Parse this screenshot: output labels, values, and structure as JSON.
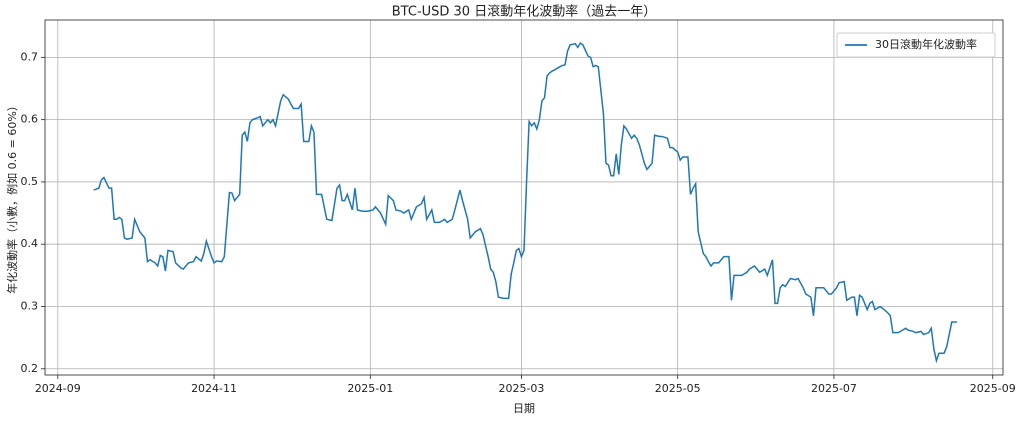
{
  "chart_data": {
    "type": "line",
    "title": "BTC-USD 30 日滾動年化波動率（過去一年）",
    "x_label": "日期",
    "y_label": "年化波動率（小數，例如 0.6 = 60%）",
    "x": [
      14,
      16,
      17,
      18,
      20,
      21,
      22,
      23,
      24,
      25,
      26,
      27,
      29,
      30,
      32,
      33,
      34,
      35,
      36,
      38,
      39,
      40,
      41,
      42,
      43,
      45,
      46,
      48,
      49,
      51,
      53,
      54,
      56,
      57,
      58,
      60,
      61,
      62,
      64,
      65,
      67,
      68,
      69,
      71,
      72,
      73,
      74,
      75,
      76,
      78,
      79,
      80,
      82,
      83,
      84,
      85,
      87,
      88,
      90,
      91,
      92,
      94,
      95,
      96,
      98,
      99,
      100,
      101,
      103,
      104,
      105,
      107,
      109,
      110,
      111,
      112,
      113,
      115,
      116,
      117,
      119,
      121,
      123,
      124,
      126,
      128,
      129,
      131,
      132,
      134,
      135,
      137,
      138,
      140,
      142,
      143,
      144,
      146,
      147,
      149,
      151,
      152,
      154,
      155,
      157,
      158,
      160,
      161,
      163,
      165,
      166,
      168,
      169,
      170,
      171,
      172,
      174,
      176,
      177,
      178,
      179,
      180,
      181,
      182,
      183,
      184,
      185,
      186,
      187,
      188,
      189,
      190,
      191,
      192,
      193,
      194,
      196,
      197,
      198,
      199,
      200,
      202,
      203,
      204,
      205,
      207,
      208,
      209,
      210,
      211,
      213,
      214,
      215,
      216,
      217,
      218,
      219,
      220,
      221,
      222,
      224,
      225,
      226,
      227,
      229,
      230,
      232,
      233,
      235,
      236,
      238,
      239,
      240,
      242,
      243,
      244,
      246,
      247,
      248,
      249,
      250,
      252,
      253,
      254,
      255,
      256,
      258,
      259,
      260,
      262,
      263,
      264,
      266,
      267,
      269,
      270,
      272,
      273,
      274,
      276,
      277,
      279,
      280,
      281,
      282,
      283,
      284,
      286,
      288,
      289,
      291,
      292,
      294,
      295,
      296,
      298,
      299,
      301,
      302,
      304,
      305,
      307,
      308,
      310,
      311,
      312,
      313,
      314,
      316,
      317,
      318,
      319,
      321,
      322,
      324,
      325,
      326,
      328,
      329,
      331,
      332,
      334,
      335,
      337,
      338,
      340,
      341,
      342,
      343,
      344,
      346,
      347,
      349,
      351
    ],
    "series": [
      {
        "name": "30日滾動年化波動率",
        "color": "#1f77b4",
        "values": [
          0.487,
          0.49,
          0.503,
          0.507,
          0.49,
          0.49,
          0.44,
          0.44,
          0.443,
          0.44,
          0.41,
          0.408,
          0.41,
          0.44,
          0.42,
          0.415,
          0.41,
          0.372,
          0.375,
          0.37,
          0.365,
          0.382,
          0.38,
          0.357,
          0.39,
          0.388,
          0.37,
          0.362,
          0.36,
          0.37,
          0.372,
          0.38,
          0.373,
          0.385,
          0.405,
          0.38,
          0.37,
          0.373,
          0.372,
          0.38,
          0.483,
          0.482,
          0.47,
          0.48,
          0.575,
          0.58,
          0.565,
          0.595,
          0.6,
          0.603,
          0.605,
          0.59,
          0.6,
          0.595,
          0.6,
          0.59,
          0.63,
          0.64,
          0.633,
          0.625,
          0.618,
          0.618,
          0.625,
          0.565,
          0.565,
          0.59,
          0.58,
          0.48,
          0.48,
          0.46,
          0.44,
          0.438,
          0.49,
          0.495,
          0.47,
          0.47,
          0.48,
          0.455,
          0.49,
          0.455,
          0.453,
          0.453,
          0.455,
          0.46,
          0.45,
          0.432,
          0.478,
          0.47,
          0.455,
          0.453,
          0.45,
          0.455,
          0.44,
          0.46,
          0.465,
          0.475,
          0.44,
          0.455,
          0.435,
          0.435,
          0.44,
          0.435,
          0.44,
          0.455,
          0.487,
          0.47,
          0.44,
          0.41,
          0.42,
          0.425,
          0.415,
          0.38,
          0.36,
          0.355,
          0.34,
          0.315,
          0.313,
          0.313,
          0.352,
          0.37,
          0.39,
          0.393,
          0.38,
          0.39,
          0.5,
          0.597,
          0.59,
          0.595,
          0.585,
          0.6,
          0.63,
          0.635,
          0.67,
          0.675,
          0.678,
          0.68,
          0.685,
          0.687,
          0.688,
          0.71,
          0.72,
          0.722,
          0.716,
          0.723,
          0.72,
          0.702,
          0.7,
          0.685,
          0.687,
          0.685,
          0.61,
          0.53,
          0.527,
          0.51,
          0.51,
          0.545,
          0.512,
          0.56,
          0.59,
          0.585,
          0.57,
          0.575,
          0.57,
          0.56,
          0.53,
          0.52,
          0.53,
          0.575,
          0.573,
          0.573,
          0.57,
          0.555,
          0.555,
          0.548,
          0.535,
          0.54,
          0.54,
          0.48,
          0.49,
          0.497,
          0.42,
          0.385,
          0.38,
          0.372,
          0.365,
          0.37,
          0.37,
          0.375,
          0.38,
          0.38,
          0.31,
          0.35,
          0.35,
          0.35,
          0.355,
          0.36,
          0.365,
          0.36,
          0.355,
          0.36,
          0.35,
          0.375,
          0.305,
          0.305,
          0.33,
          0.335,
          0.332,
          0.345,
          0.343,
          0.345,
          0.33,
          0.32,
          0.315,
          0.285,
          0.33,
          0.33,
          0.33,
          0.32,
          0.32,
          0.33,
          0.338,
          0.34,
          0.31,
          0.315,
          0.315,
          0.285,
          0.318,
          0.315,
          0.295,
          0.305,
          0.308,
          0.295,
          0.3,
          0.297,
          0.29,
          0.285,
          0.258,
          0.258,
          0.26,
          0.265,
          0.262,
          0.26,
          0.258,
          0.26,
          0.255,
          0.258,
          0.265,
          0.232,
          0.213,
          0.225,
          0.225,
          0.235,
          0.275,
          0.275
        ]
      }
    ],
    "xlim": [
      -5,
      369
    ],
    "xticks": [
      {
        "value": 0,
        "label": "2024-09"
      },
      {
        "value": 61,
        "label": "2024-11"
      },
      {
        "value": 122,
        "label": "2025-01"
      },
      {
        "value": 181,
        "label": "2025-03"
      },
      {
        "value": 242,
        "label": "2025-05"
      },
      {
        "value": 303,
        "label": "2025-07"
      },
      {
        "value": 365,
        "label": "2025-09"
      }
    ],
    "ylim": [
      0.19,
      0.76
    ],
    "yticks": [
      0.2,
      0.3,
      0.4,
      0.5,
      0.6,
      0.7
    ],
    "grid": true,
    "legend": "upper right"
  }
}
